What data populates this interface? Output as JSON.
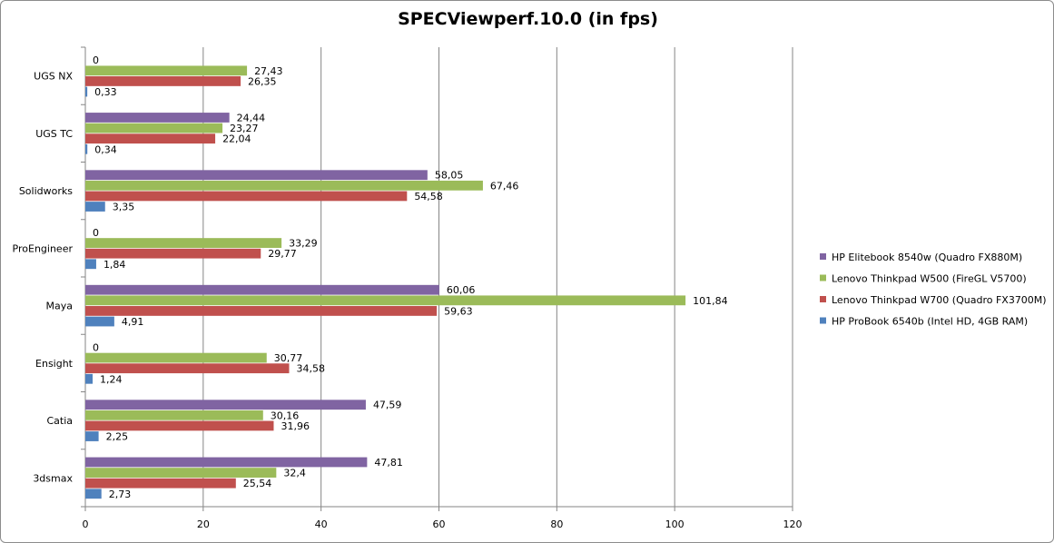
{
  "chart_data": {
    "type": "bar",
    "orientation": "horizontal",
    "title": "SPECViewperf.10.0 (in fps)",
    "categories": [
      "UGS NX",
      "UGS TC",
      "Solidworks",
      "ProEngineer",
      "Maya",
      "Ensight",
      "Catia",
      "3dsmax"
    ],
    "series": [
      {
        "name": "HP Elitebook 8540w (Quadro FX880M)",
        "color": "#8064a2",
        "values": [
          0,
          24.44,
          58.05,
          0,
          60.06,
          0,
          47.59,
          47.81
        ],
        "labels": [
          "0",
          "24,44",
          "58,05",
          "0",
          "60,06",
          "0",
          "47,59",
          "47,81"
        ]
      },
      {
        "name": "Lenovo Thinkpad W500 (FireGL V5700)",
        "color": "#9bbb59",
        "values": [
          27.43,
          23.27,
          67.46,
          33.29,
          101.84,
          30.77,
          30.16,
          32.4
        ],
        "labels": [
          "27,43",
          "23,27",
          "67,46",
          "33,29",
          "101,84",
          "30,77",
          "30,16",
          "32,4"
        ]
      },
      {
        "name": "Lenovo Thinkpad W700 (Quadro FX3700M)",
        "color": "#c0504d",
        "values": [
          26.35,
          22.04,
          54.58,
          29.77,
          59.63,
          34.58,
          31.96,
          25.54
        ],
        "labels": [
          "26,35",
          "22,04",
          "54,58",
          "29,77",
          "59,63",
          "34,58",
          "31,96",
          "25,54"
        ]
      },
      {
        "name": "HP ProBook 6540b (Intel HD, 4GB RAM)",
        "color": "#4f81bd",
        "values": [
          0.33,
          0.34,
          3.35,
          1.84,
          4.91,
          1.24,
          2.25,
          2.73
        ],
        "labels": [
          "0,33",
          "0,34",
          "3,35",
          "1,84",
          "4,91",
          "1,24",
          "2,25",
          "2,73"
        ]
      }
    ],
    "xlim": [
      0,
      120
    ],
    "xticks": [
      0,
      20,
      40,
      60,
      80,
      100,
      120
    ],
    "grid": true,
    "legend_position": "right"
  }
}
